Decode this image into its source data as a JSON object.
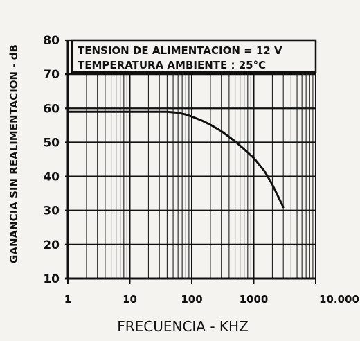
{
  "chart_data": {
    "type": "line",
    "title": "",
    "xlabel": "FRECUENCIA - KHZ",
    "ylabel": "GANANCIA SIN REALIMENTACION - dB",
    "x_scale": "log",
    "xlim": [
      1,
      10000
    ],
    "ylim": [
      10,
      80
    ],
    "x_ticks": [
      1,
      10,
      100,
      1000,
      10000
    ],
    "x_tick_labels": [
      "1",
      "10",
      "100",
      "1000",
      "10.000"
    ],
    "y_ticks": [
      10,
      20,
      30,
      40,
      50,
      60,
      70,
      80
    ],
    "grid": true,
    "annotations": [
      "TENSION DE ALIMENTACION = 12 V",
      "TEMPERATURA AMBIENTE : 25°C"
    ],
    "series": [
      {
        "x": [
          1,
          2,
          5,
          10,
          20,
          40,
          60,
          80,
          100,
          150,
          200,
          300,
          500,
          700,
          1000,
          1500,
          2000,
          3000
        ],
        "y": [
          59,
          59,
          59,
          59,
          59,
          59,
          58.7,
          58.2,
          57.6,
          56.3,
          55.2,
          53.3,
          50.3,
          48,
          45.4,
          41.5,
          37.6,
          31
        ]
      }
    ]
  }
}
